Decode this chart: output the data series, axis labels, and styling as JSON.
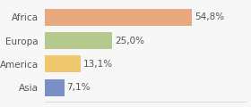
{
  "categories": [
    "Africa",
    "Europa",
    "America",
    "Asia"
  ],
  "values": [
    54.8,
    25.0,
    13.1,
    7.1
  ],
  "labels": [
    "54,8%",
    "25,0%",
    "13,1%",
    "7,1%"
  ],
  "bar_colors": [
    "#e8a97e",
    "#b5c98e",
    "#f0c96e",
    "#7b8fc7"
  ],
  "background_color": "#f7f7f7",
  "xlim": [
    0,
    75
  ],
  "bar_height": 0.72,
  "label_fontsize": 7.5,
  "tick_fontsize": 7.5,
  "grid_color": "#dddddd",
  "text_color": "#555555"
}
